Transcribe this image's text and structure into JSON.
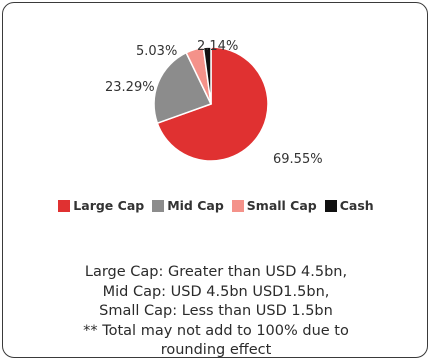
{
  "chart_data": {
    "type": "pie",
    "slices": [
      {
        "label": "Large Cap",
        "value": 69.55,
        "value_label": "69.55%",
        "color": "#e03131"
      },
      {
        "label": "Mid Cap",
        "value": 23.29,
        "value_label": "23.29%",
        "color": "#8c8c8c"
      },
      {
        "label": "Small Cap",
        "value": 5.03,
        "value_label": "5.03%",
        "color": "#f4928a"
      },
      {
        "label": "Cash",
        "value": 2.14,
        "value_label": "2.14%",
        "color": "#111111"
      }
    ],
    "start_angle_deg": 0,
    "direction": "clockwise",
    "legend_position": "bottom"
  },
  "notes": [
    "Large Cap: Greater than USD 4.5bn,",
    "Mid Cap: USD 4.5bn USD1.5bn,",
    "Small Cap: Less than USD 1.5bn",
    "** Total may not add to 100% due to",
    "rounding effect"
  ]
}
